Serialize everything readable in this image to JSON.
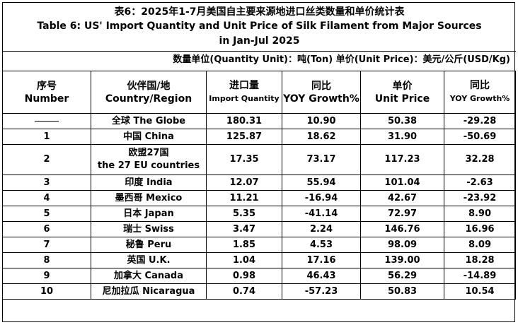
{
  "title_cn": "表6：2025年1-7月美国自主要来源地进口丝类数量和单价统计表",
  "title_en_line1": "Table 6: US' Import Quantity and Unit Price of Silk Filament from Major Sources",
  "title_en_line2": "in Jan-Jul 2025",
  "unit_note": "数量单位(Quantity Unit)：吨(Ton)  单价(Unit Price)：美元/公斤(USD/Kg)",
  "headers": [
    {
      "cn": "序号",
      "en": "Number"
    },
    {
      "cn": "伙伴国/地",
      "en": "Country/Region"
    },
    {
      "cn": "进口量",
      "en": "Import Quantity"
    },
    {
      "cn": "同比",
      "en": "YOY Growth%"
    },
    {
      "cn": "单价",
      "en": "Unit Price"
    },
    {
      "cn": "同比",
      "en": "YOY Growth%"
    }
  ],
  "rows": [
    {
      "no": "——",
      "country": "全球 The Globe",
      "country2": "",
      "qty": "180.31",
      "yoy": "10.90",
      "price": "50.38",
      "price_yoy": "-29.28"
    },
    {
      "no": "1",
      "country": "中国 China",
      "country2": "",
      "qty": "125.87",
      "yoy": "18.62",
      "price": "31.90",
      "price_yoy": "-50.69"
    },
    {
      "no": "2",
      "country": "欧盟27国",
      "country2": "the 27 EU countries",
      "qty": "17.35",
      "yoy": "73.17",
      "price": "117.23",
      "price_yoy": "32.28"
    },
    {
      "no": "3",
      "country": "印度 India",
      "country2": "",
      "qty": "12.07",
      "yoy": "55.94",
      "price": "101.04",
      "price_yoy": "-2.63"
    },
    {
      "no": "4",
      "country": "墨西哥 Mexico",
      "country2": "",
      "qty": "11.21",
      "yoy": "-16.94",
      "price": "42.67",
      "price_yoy": "-23.92"
    },
    {
      "no": "5",
      "country": "日本 Japan",
      "country2": "",
      "qty": "5.35",
      "yoy": "-41.14",
      "price": "72.97",
      "price_yoy": "8.90"
    },
    {
      "no": "6",
      "country": "瑞士 Swiss",
      "country2": "",
      "qty": "3.47",
      "yoy": "2.24",
      "price": "146.76",
      "price_yoy": "16.96"
    },
    {
      "no": "7",
      "country": "秘鲁 Peru",
      "country2": "",
      "qty": "1.85",
      "yoy": "4.53",
      "price": "98.09",
      "price_yoy": "8.09"
    },
    {
      "no": "8",
      "country": "英国 U.K.",
      "country2": "",
      "qty": "1.04",
      "yoy": "17.16",
      "price": "139.00",
      "price_yoy": "18.28"
    },
    {
      "no": "9",
      "country": "加拿大 Canada",
      "country2": "",
      "qty": "0.98",
      "yoy": "46.43",
      "price": "56.29",
      "price_yoy": "-14.89"
    },
    {
      "no": "10",
      "country": "尼加拉瓜 Nicaragua",
      "country2": "",
      "qty": "0.74",
      "yoy": "-57.23",
      "price": "50.83",
      "price_yoy": "10.54"
    }
  ]
}
